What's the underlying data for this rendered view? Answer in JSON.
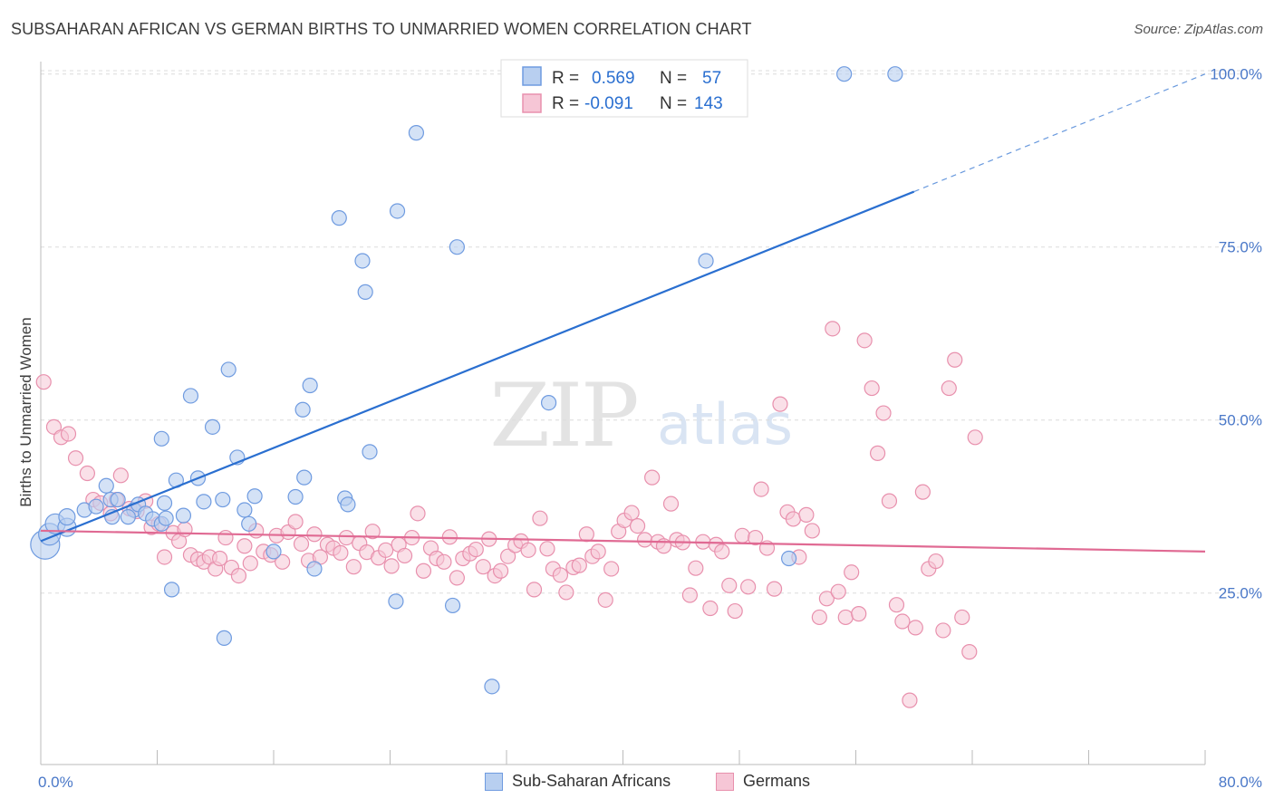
{
  "header": {
    "title": "SUBSAHARAN AFRICAN VS GERMAN BIRTHS TO UNMARRIED WOMEN CORRELATION CHART",
    "source": "Source: ZipAtlas.com"
  },
  "watermark": {
    "zip": "ZIP",
    "atlas": "atlas"
  },
  "legend_top": {
    "rows": [
      {
        "r_label": "R =",
        "r_value": "0.569",
        "n_label": "N =",
        "n_value": "57"
      },
      {
        "r_label": "R =",
        "r_value": "-0.091",
        "n_label": "N =",
        "n_value": "143"
      }
    ]
  },
  "legend_bottom": {
    "items": [
      {
        "label": "Sub-Saharan Africans"
      },
      {
        "label": "Germans"
      }
    ]
  },
  "colors": {
    "blue_fill": "#b8cff0",
    "blue_stroke": "#6f9be0",
    "blue_line": "#2a6fd0",
    "pink_fill": "#f6c6d6",
    "pink_stroke": "#e890ad",
    "pink_line": "#e06a93",
    "tick_text": "#4a78c8",
    "grid": "#dcdcdc"
  },
  "chart_data": {
    "type": "scatter",
    "title": "SUBSAHARAN AFRICAN VS GERMAN BIRTHS TO UNMARRIED WOMEN CORRELATION CHART",
    "xlabel": "",
    "ylabel": "Births to Unmarried Women",
    "xlim": [
      0,
      80
    ],
    "ylim": [
      0,
      105
    ],
    "x_tick_labels": [
      "0.0%",
      "80.0%"
    ],
    "y_ticks": [
      25,
      50,
      75,
      100
    ],
    "y_tick_labels": [
      "25.0%",
      "50.0%",
      "75.0%",
      "100.0%"
    ],
    "grid": "horizontal dashed",
    "legend_placement": "top-center and bottom",
    "series": [
      {
        "name": "Sub-Saharan Africans",
        "r": 0.569,
        "n": 57,
        "trend": {
          "x0": 0,
          "y0": 32.5,
          "x1": 60,
          "y1": 83,
          "dashed_to_x": 80,
          "dashed_to_y": 100
        },
        "points": [
          [
            0.3,
            32.0,
            16
          ],
          [
            0.6,
            33.5,
            12
          ],
          [
            1.0,
            35.0,
            11
          ],
          [
            1.8,
            34.5,
            10
          ],
          [
            1.8,
            36.0,
            9
          ],
          [
            3.0,
            37.0,
            8
          ],
          [
            3.8,
            37.5,
            8
          ],
          [
            4.5,
            40.5,
            8
          ],
          [
            4.8,
            38.5,
            8
          ],
          [
            4.9,
            36.0,
            8
          ],
          [
            5.3,
            38.5,
            8
          ],
          [
            6.4,
            37.0,
            8
          ],
          [
            6.7,
            37.8,
            8
          ],
          [
            7.2,
            36.5,
            8
          ],
          [
            7.7,
            35.7,
            8
          ],
          [
            8.3,
            35.0,
            8
          ],
          [
            8.5,
            38.0,
            8
          ],
          [
            8.3,
            47.3,
            8
          ],
          [
            8.6,
            35.8,
            8
          ],
          [
            9.3,
            41.3,
            8
          ],
          [
            9.8,
            36.2,
            8
          ],
          [
            10.3,
            53.5,
            8
          ],
          [
            10.8,
            41.6,
            8
          ],
          [
            11.2,
            38.2,
            8
          ],
          [
            11.8,
            49.0,
            8
          ],
          [
            12.5,
            38.5,
            8
          ],
          [
            12.9,
            57.3,
            8
          ],
          [
            14.0,
            37.0,
            8
          ],
          [
            14.3,
            35.0,
            8
          ],
          [
            14.7,
            39.0,
            8
          ],
          [
            16.0,
            31.0,
            8
          ],
          [
            17.5,
            38.9,
            8
          ],
          [
            18.0,
            51.5,
            8
          ],
          [
            18.1,
            41.7,
            8
          ],
          [
            18.8,
            28.5,
            8
          ],
          [
            18.5,
            55.0,
            8
          ],
          [
            20.5,
            79.2,
            8
          ],
          [
            20.9,
            38.7,
            8
          ],
          [
            21.1,
            37.8,
            8
          ],
          [
            22.1,
            73.0,
            8
          ],
          [
            22.3,
            68.5,
            8
          ],
          [
            22.6,
            45.4,
            8
          ],
          [
            24.5,
            80.2,
            8
          ],
          [
            24.4,
            23.8,
            8
          ],
          [
            25.8,
            91.5,
            8
          ],
          [
            28.3,
            23.2,
            8
          ],
          [
            28.6,
            75.0,
            8
          ],
          [
            31.0,
            11.5,
            8
          ],
          [
            34.9,
            52.5,
            8
          ],
          [
            45.7,
            73.0,
            8
          ],
          [
            51.4,
            30.0,
            8
          ],
          [
            55.2,
            100.0,
            8
          ],
          [
            58.7,
            100.0,
            8
          ],
          [
            13.5,
            44.6,
            8
          ],
          [
            6.0,
            36.0,
            8
          ],
          [
            9.0,
            25.5,
            8
          ],
          [
            12.6,
            18.5,
            8
          ]
        ]
      },
      {
        "name": "Germans",
        "r": -0.091,
        "n": 143,
        "trend": {
          "x0": 0,
          "y0": 34.0,
          "x1": 80,
          "y1": 31.0
        },
        "points": [
          [
            0.2,
            55.5
          ],
          [
            0.9,
            49.0
          ],
          [
            1.4,
            47.5
          ],
          [
            1.9,
            48.0
          ],
          [
            2.4,
            44.5
          ],
          [
            3.2,
            42.3
          ],
          [
            3.6,
            38.5
          ],
          [
            4.1,
            38.0
          ],
          [
            4.8,
            36.5
          ],
          [
            5.2,
            38.5
          ],
          [
            5.5,
            42.0
          ],
          [
            6.1,
            37.2
          ],
          [
            6.6,
            36.8
          ],
          [
            7.2,
            38.3
          ],
          [
            7.6,
            34.5
          ],
          [
            8.1,
            35.0
          ],
          [
            8.5,
            30.2
          ],
          [
            9.1,
            33.7
          ],
          [
            9.5,
            32.5
          ],
          [
            9.9,
            34.2
          ],
          [
            10.3,
            30.5
          ],
          [
            10.8,
            29.9
          ],
          [
            11.2,
            29.5
          ],
          [
            11.6,
            30.2
          ],
          [
            12.0,
            28.5
          ],
          [
            12.3,
            30.0
          ],
          [
            12.7,
            33.0
          ],
          [
            13.1,
            28.7
          ],
          [
            13.6,
            27.5
          ],
          [
            14.0,
            31.8
          ],
          [
            14.4,
            29.3
          ],
          [
            14.8,
            34.0
          ],
          [
            15.3,
            31.0
          ],
          [
            15.8,
            30.5
          ],
          [
            16.2,
            33.3
          ],
          [
            16.6,
            29.5
          ],
          [
            17.0,
            33.8
          ],
          [
            17.5,
            35.3
          ],
          [
            17.9,
            32.1
          ],
          [
            18.4,
            29.7
          ],
          [
            18.8,
            33.5
          ],
          [
            19.2,
            30.2
          ],
          [
            19.7,
            32.0
          ],
          [
            20.1,
            31.5
          ],
          [
            20.6,
            30.8
          ],
          [
            21.0,
            33.0
          ],
          [
            21.5,
            28.8
          ],
          [
            21.9,
            32.2
          ],
          [
            22.4,
            30.9
          ],
          [
            22.8,
            33.9
          ],
          [
            23.2,
            30.1
          ],
          [
            23.7,
            31.2
          ],
          [
            24.1,
            28.9
          ],
          [
            24.6,
            32.0
          ],
          [
            25.0,
            30.4
          ],
          [
            25.5,
            33.0
          ],
          [
            25.9,
            36.5
          ],
          [
            26.3,
            28.2
          ],
          [
            26.8,
            31.5
          ],
          [
            27.2,
            30.0
          ],
          [
            27.7,
            29.5
          ],
          [
            28.1,
            33.1
          ],
          [
            28.6,
            27.2
          ],
          [
            29.0,
            30.0
          ],
          [
            29.5,
            30.7
          ],
          [
            29.9,
            31.3
          ],
          [
            30.4,
            28.8
          ],
          [
            30.8,
            32.8
          ],
          [
            31.2,
            27.5
          ],
          [
            31.6,
            28.2
          ],
          [
            32.1,
            30.3
          ],
          [
            32.6,
            31.9
          ],
          [
            33.0,
            32.5
          ],
          [
            33.5,
            31.2
          ],
          [
            33.9,
            25.5
          ],
          [
            34.3,
            35.8
          ],
          [
            34.8,
            31.4
          ],
          [
            35.2,
            28.5
          ],
          [
            35.7,
            27.6
          ],
          [
            36.1,
            25.1
          ],
          [
            36.6,
            28.7
          ],
          [
            37.0,
            29.0
          ],
          [
            37.5,
            33.5
          ],
          [
            37.9,
            30.3
          ],
          [
            38.3,
            31.0
          ],
          [
            38.8,
            24.0
          ],
          [
            39.2,
            28.5
          ],
          [
            39.7,
            33.9
          ],
          [
            40.1,
            35.5
          ],
          [
            40.6,
            36.6
          ],
          [
            41.0,
            34.7
          ],
          [
            41.5,
            32.7
          ],
          [
            42.0,
            41.7
          ],
          [
            42.4,
            32.4
          ],
          [
            42.8,
            31.8
          ],
          [
            43.3,
            37.9
          ],
          [
            43.7,
            32.7
          ],
          [
            44.1,
            32.3
          ],
          [
            44.6,
            24.7
          ],
          [
            45.0,
            28.6
          ],
          [
            45.5,
            32.4
          ],
          [
            46.0,
            22.8
          ],
          [
            46.4,
            32.0
          ],
          [
            46.8,
            31.0
          ],
          [
            47.3,
            26.1
          ],
          [
            47.7,
            22.4
          ],
          [
            48.2,
            33.3
          ],
          [
            48.6,
            25.9
          ],
          [
            49.1,
            33.0
          ],
          [
            49.5,
            40.0
          ],
          [
            49.9,
            31.5
          ],
          [
            50.4,
            25.6
          ],
          [
            50.8,
            52.3
          ],
          [
            51.3,
            36.7
          ],
          [
            51.7,
            35.7
          ],
          [
            52.1,
            30.2
          ],
          [
            52.6,
            36.3
          ],
          [
            53.0,
            34.0
          ],
          [
            53.5,
            21.5
          ],
          [
            54.0,
            24.2
          ],
          [
            54.4,
            63.2
          ],
          [
            54.8,
            25.2
          ],
          [
            55.3,
            21.5
          ],
          [
            55.7,
            28.0
          ],
          [
            56.2,
            22.0
          ],
          [
            56.6,
            61.5
          ],
          [
            57.1,
            54.6
          ],
          [
            57.5,
            45.2
          ],
          [
            57.9,
            51.0
          ],
          [
            58.3,
            38.3
          ],
          [
            58.8,
            23.3
          ],
          [
            59.2,
            20.9
          ],
          [
            59.7,
            9.5
          ],
          [
            60.1,
            20.0
          ],
          [
            60.6,
            39.6
          ],
          [
            61.0,
            28.5
          ],
          [
            61.5,
            29.6
          ],
          [
            62.0,
            19.6
          ],
          [
            62.4,
            54.6
          ],
          [
            62.8,
            58.7
          ],
          [
            63.3,
            21.5
          ],
          [
            63.8,
            16.5
          ],
          [
            64.2,
            47.5
          ]
        ]
      }
    ]
  }
}
